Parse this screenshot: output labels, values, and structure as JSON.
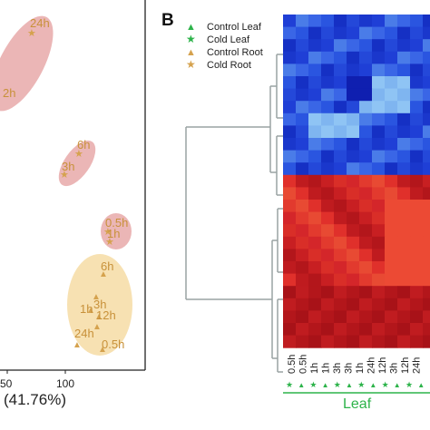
{
  "left_panel": {
    "x_tick_labels": [
      "50",
      "100"
    ],
    "x_axis_fragment": "(41.76%)",
    "points": [
      {
        "label": "24h",
        "marker": "star",
        "group": "Cold Root"
      },
      {
        "label": "2h",
        "marker": "none",
        "group": "Cold Root"
      },
      {
        "label": "6h",
        "marker": "star",
        "group": "Cold Root"
      },
      {
        "label": "3h",
        "marker": "star",
        "group": "Cold Root"
      },
      {
        "label": "0.5h",
        "marker": "star",
        "group": "Cold Root"
      },
      {
        "label": "1h",
        "marker": "star",
        "group": "Cold Root"
      },
      {
        "label": "6h",
        "marker": "triangle",
        "group": "Control Root"
      },
      {
        "label": "3h",
        "marker": "triangle",
        "group": "Control Root"
      },
      {
        "label": "1h",
        "marker": "triangle",
        "group": "Control Root"
      },
      {
        "label": "12h",
        "marker": "triangle",
        "group": "Control Root"
      },
      {
        "label": "24h",
        "marker": "triangle",
        "group": "Control Root"
      },
      {
        "label": "0.5h",
        "marker": "triangle",
        "group": "Control Root"
      }
    ],
    "colors": {
      "cold_ellipse": "#e7a9a9",
      "control_ellipse": "#f6deaa",
      "marker": "#d5a24e",
      "text": "#c8913a"
    }
  },
  "right_panel": {
    "panel_label": "B",
    "legend": [
      {
        "label": "Control Leaf",
        "marker": "triangle",
        "color": "#2db34a"
      },
      {
        "label": "Cold Leaf",
        "marker": "star",
        "color": "#2db34a"
      },
      {
        "label": "Control Root",
        "marker": "triangle",
        "color": "#d5a24e"
      },
      {
        "label": "Cold Root",
        "marker": "star",
        "color": "#d5a24e"
      }
    ],
    "column_labels": [
      "0.5h",
      "0.5h",
      "1h",
      "1h",
      "3h",
      "3h",
      "1h",
      "24h",
      "12h",
      "3h",
      "12h",
      "24h"
    ],
    "bottom_markers": [
      "star",
      "triangle",
      "star",
      "triangle",
      "star",
      "triangle",
      "star",
      "triangle",
      "star",
      "triangle",
      "star",
      "triangle"
    ],
    "group_label": "Leaf",
    "colors": {
      "leaf": "#2db34a",
      "dendrogram": "#9aa3a3"
    }
  }
}
